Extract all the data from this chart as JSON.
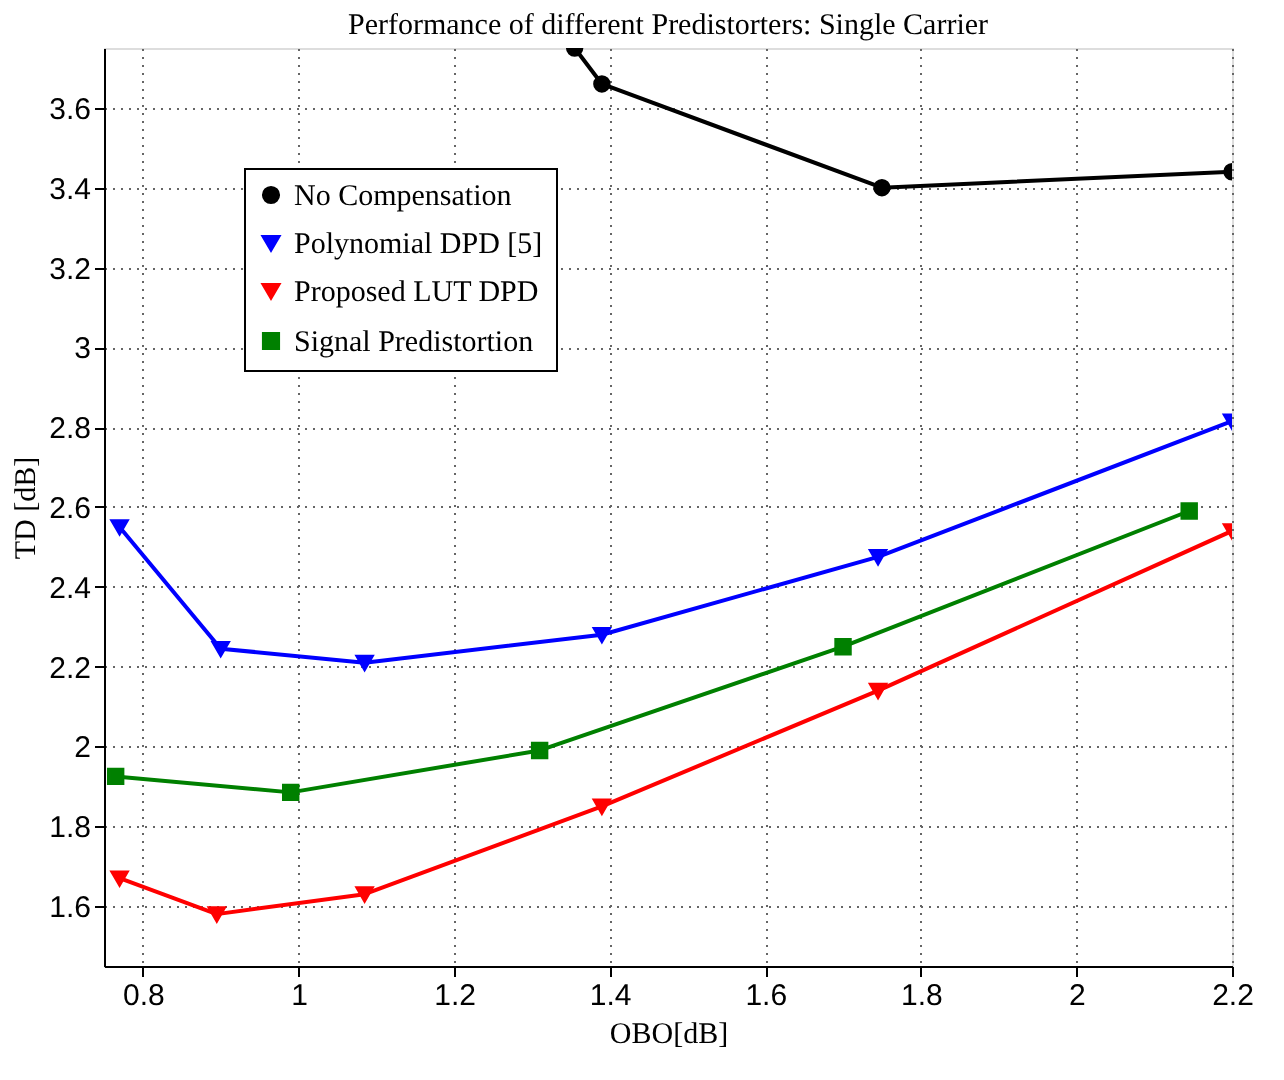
{
  "chart_data": {
    "type": "line",
    "title": "Performance of different Predistorters: Single Carrier",
    "xlabel": "OBO[dB]",
    "ylabel": "TD [dB]",
    "xlim": [
      0.75,
      2.2
    ],
    "ylim": [
      1.45,
      3.75
    ],
    "xticks": [
      0.8,
      1,
      1.2,
      1.4,
      1.6,
      1.8,
      2,
      2.2
    ],
    "yticks": [
      1.6,
      1.8,
      2,
      2.2,
      2.4,
      2.6,
      2.8,
      3,
      3.2,
      3.4,
      3.6
    ],
    "grid": true,
    "legend": "top left",
    "line_style": "solid",
    "series": [
      {
        "name": "No Compensation",
        "color": "#000000",
        "marker": "circle",
        "x": [
          1.355,
          1.39,
          1.75,
          2.2
        ],
        "values": [
          3.75,
          3.66,
          3.4,
          3.44
        ]
      },
      {
        "name": "Polynomial DPD [5]",
        "color": "#0000ff",
        "marker": "triangle",
        "x": [
          0.77,
          0.9,
          1.085,
          1.39,
          1.745,
          2.2
        ],
        "values": [
          2.55,
          2.245,
          2.21,
          2.28,
          2.475,
          2.815
        ]
      },
      {
        "name": "Proposed LUT DPD",
        "color": "#ff0000",
        "marker": "triangle",
        "x": [
          0.77,
          0.895,
          1.085,
          1.39,
          1.745,
          2.2
        ],
        "values": [
          1.67,
          1.58,
          1.63,
          1.85,
          2.14,
          2.54
        ]
      },
      {
        "name": "Signal Predistortion",
        "color": "#008000",
        "marker": "square",
        "x": [
          0.765,
          0.99,
          1.31,
          1.7,
          2.145
        ],
        "values": [
          1.925,
          1.885,
          1.99,
          2.25,
          2.59
        ]
      }
    ]
  }
}
